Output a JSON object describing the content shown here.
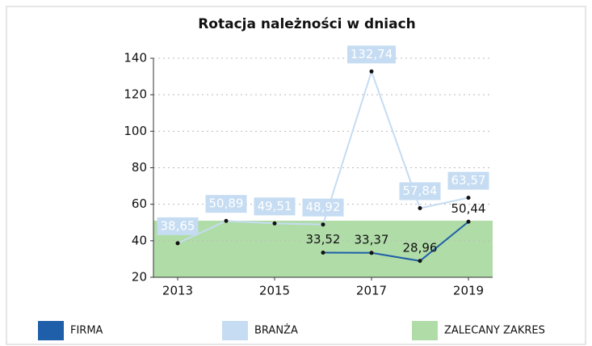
{
  "chart_data": {
    "type": "line",
    "title": "Rotacja należności w dniach",
    "x": [
      2013,
      2014,
      2015,
      2016,
      2017,
      2018,
      2019
    ],
    "xlim": [
      2012.5,
      2019.5
    ],
    "xticks": [
      2013,
      2015,
      2017,
      2019
    ],
    "ylim": [
      20,
      140
    ],
    "yticks": [
      20,
      40,
      60,
      80,
      100,
      120,
      140
    ],
    "grid": true,
    "band": {
      "name": "ZALECANY ZAKRES",
      "color": "#b0dca8",
      "range": [
        20,
        51
      ]
    },
    "series": [
      {
        "name": "FIRMA",
        "color": "#1f5ea8",
        "values": [
          null,
          null,
          null,
          33.52,
          33.37,
          28.96,
          50.44
        ],
        "value_labels": [
          null,
          null,
          null,
          "33,52",
          "33,37",
          "28,96",
          "50,44"
        ]
      },
      {
        "name": "BRANŻA",
        "color": "#c5dcf2",
        "values": [
          38.65,
          50.89,
          49.51,
          48.92,
          132.74,
          57.84,
          63.57
        ],
        "value_labels": [
          "38,65",
          "50,89",
          "49,51",
          "48,92",
          "132,74",
          "57,84",
          "63,57"
        ]
      }
    ]
  }
}
